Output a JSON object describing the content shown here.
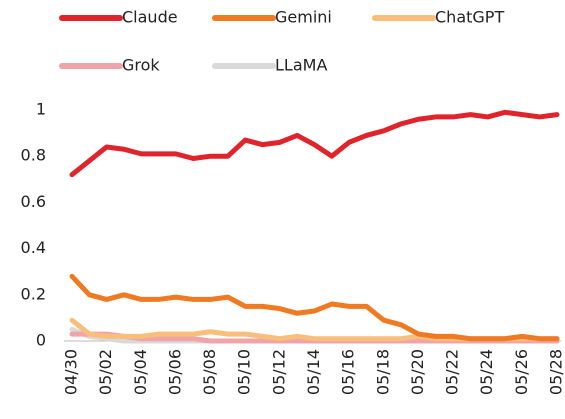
{
  "chart_data": {
    "type": "line",
    "categories": [
      "04/30",
      null,
      "05/02",
      null,
      "05/04",
      null,
      "05/06",
      null,
      "05/08",
      null,
      "05/10",
      null,
      "05/12",
      null,
      "05/14",
      null,
      "05/16",
      null,
      "05/18",
      null,
      "05/20",
      null,
      "05/22",
      null,
      "05/24",
      null,
      "05/26",
      null,
      "05/28"
    ],
    "series": [
      {
        "name": "Claude",
        "color": "#e0242b",
        "values": [
          0.72,
          0.78,
          0.84,
          0.83,
          0.81,
          0.81,
          0.81,
          0.79,
          0.8,
          0.8,
          0.87,
          0.85,
          0.86,
          0.89,
          0.85,
          0.8,
          0.86,
          0.89,
          0.91,
          0.94,
          0.96,
          0.97,
          0.97,
          0.98,
          0.97,
          0.99,
          0.98,
          0.97,
          0.98
        ]
      },
      {
        "name": "Gemini",
        "color": "#f07a21",
        "values": [
          0.28,
          0.2,
          0.18,
          0.2,
          0.18,
          0.18,
          0.19,
          0.18,
          0.18,
          0.19,
          0.15,
          0.15,
          0.14,
          0.12,
          0.13,
          0.16,
          0.15,
          0.15,
          0.09,
          0.07,
          0.03,
          0.02,
          0.02,
          0.01,
          0.01,
          0.01,
          0.02,
          0.01,
          0.01
        ]
      },
      {
        "name": "ChatGPT",
        "color": "#f9be7a",
        "values": [
          0.09,
          0.03,
          0.02,
          0.02,
          0.02,
          0.03,
          0.03,
          0.03,
          0.04,
          0.03,
          0.03,
          0.02,
          0.01,
          0.02,
          0.01,
          0.01,
          0.01,
          0.01,
          0.01,
          0.01,
          0.02,
          0.01,
          0.01,
          0.01,
          0.01,
          0.01,
          0.01,
          0.01,
          0.01
        ]
      },
      {
        "name": "Grok",
        "color": "#eea4a8",
        "values": [
          0.03,
          0.03,
          0.03,
          0.02,
          0.01,
          0.01,
          0.01,
          0.01,
          0,
          0,
          0,
          0,
          0,
          0,
          0,
          0,
          0,
          0,
          0,
          0,
          0,
          0,
          0,
          0,
          0,
          0,
          0,
          0,
          0
        ]
      },
      {
        "name": "LLaMA",
        "color": "#d9d9d9",
        "values": [
          0.05,
          0.02,
          0.01,
          0,
          0,
          0,
          0,
          0,
          0,
          0,
          0,
          0,
          0,
          0,
          0,
          0,
          0,
          0,
          0,
          0,
          0,
          0,
          0,
          0,
          0,
          0,
          0,
          0,
          0
        ]
      }
    ],
    "ylim": [
      0,
      1
    ],
    "yticks": [
      0,
      0.2,
      0.4,
      0.6,
      0.8,
      1
    ],
    "grid": false
  }
}
